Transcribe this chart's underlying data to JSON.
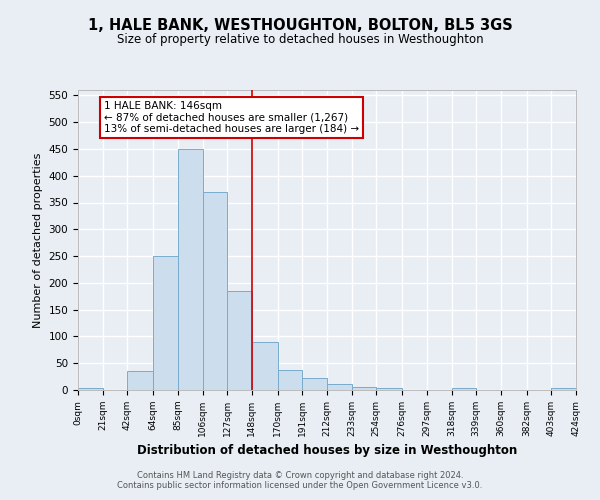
{
  "title": "1, HALE BANK, WESTHOUGHTON, BOLTON, BL5 3GS",
  "subtitle": "Size of property relative to detached houses in Westhoughton",
  "xlabel": "Distribution of detached houses by size in Westhoughton",
  "ylabel": "Number of detached properties",
  "bar_color": "#ccdded",
  "bar_edge_color": "#7aabcc",
  "bin_edges": [
    0,
    21,
    42,
    64,
    85,
    106,
    127,
    148,
    170,
    191,
    212,
    233,
    254,
    276,
    297,
    318,
    339,
    360,
    382,
    403,
    424
  ],
  "bin_labels": [
    "0sqm",
    "21sqm",
    "42sqm",
    "64sqm",
    "85sqm",
    "106sqm",
    "127sqm",
    "148sqm",
    "170sqm",
    "191sqm",
    "212sqm",
    "233sqm",
    "254sqm",
    "276sqm",
    "297sqm",
    "318sqm",
    "339sqm",
    "360sqm",
    "382sqm",
    "403sqm",
    "424sqm"
  ],
  "counts": [
    3,
    0,
    35,
    250,
    450,
    370,
    185,
    90,
    38,
    22,
    11,
    5,
    3,
    0,
    0,
    4,
    0,
    0,
    0,
    3
  ],
  "ylim": [
    0,
    560
  ],
  "yticks": [
    0,
    50,
    100,
    150,
    200,
    250,
    300,
    350,
    400,
    450,
    500,
    550
  ],
  "vline_x": 148,
  "vline_color": "#cc0000",
  "annotation_text": "1 HALE BANK: 146sqm\n← 87% of detached houses are smaller (1,267)\n13% of semi-detached houses are larger (184) →",
  "annotation_box_color": "#ffffff",
  "annotation_box_edge": "#cc0000",
  "footer_line1": "Contains HM Land Registry data © Crown copyright and database right 2024.",
  "footer_line2": "Contains public sector information licensed under the Open Government Licence v3.0.",
  "background_color": "#e8eef4",
  "grid_color": "#ffffff"
}
